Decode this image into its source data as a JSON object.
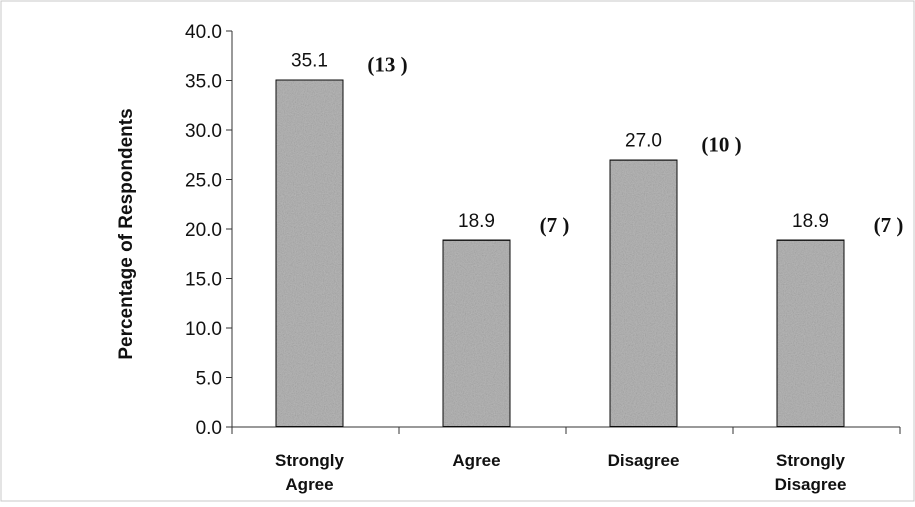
{
  "chart_data": {
    "type": "bar",
    "title": "",
    "xlabel": "",
    "ylabel": "Percentage of Respondents",
    "ylim": [
      0,
      40
    ],
    "yticks": [
      "0.0",
      "5.0",
      "10.0",
      "15.0",
      "20.0",
      "25.0",
      "30.0",
      "35.0",
      "40.0"
    ],
    "grid": false,
    "legend": "none",
    "categories": [
      [
        "Strongly",
        "Agree"
      ],
      [
        "Agree"
      ],
      [
        "Disagree"
      ],
      [
        "Strongly",
        "Disagree"
      ]
    ],
    "values": [
      35.1,
      18.9,
      27.0,
      18.9
    ],
    "value_labels": [
      "35.1",
      "18.9",
      "27.0",
      "18.9"
    ],
    "counts": [
      "(13 )",
      "(7 )",
      "(10 )",
      "(7 )"
    ],
    "colors": {
      "bar_fill": "#b8b8b8",
      "bar_stroke": "#111111",
      "axis": "#333333"
    }
  }
}
